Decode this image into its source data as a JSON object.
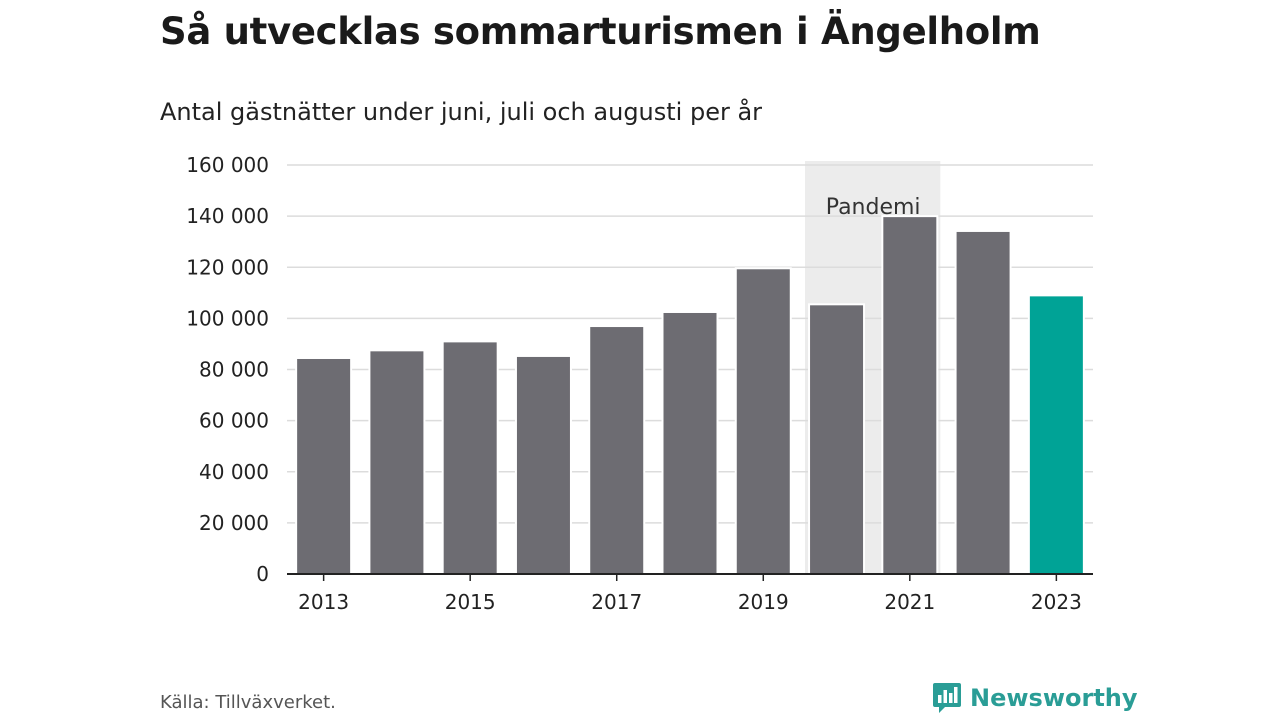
{
  "header": {
    "title": "Så utvecklas sommarturismen i Ängelholm",
    "subtitle": "Antal gästnätter under juni, juli och augusti per år"
  },
  "chart_data": {
    "type": "bar",
    "title": "Så utvecklas sommarturismen i Ängelholm",
    "subtitle": "Antal gästnätter under juni, juli och augusti per år",
    "xlabel": "",
    "ylabel": "",
    "categories": [
      "2013",
      "2014",
      "2015",
      "2016",
      "2017",
      "2018",
      "2019",
      "2020",
      "2021",
      "2022",
      "2023"
    ],
    "values": [
      84500,
      87500,
      91000,
      85300,
      97000,
      102500,
      119600,
      105500,
      140000,
      134200,
      109000
    ],
    "x_tick_labels": [
      "2013",
      "2015",
      "2017",
      "2019",
      "2021",
      "2023"
    ],
    "y_tick_values": [
      0,
      20000,
      40000,
      60000,
      80000,
      100000,
      120000,
      140000,
      160000
    ],
    "y_tick_labels": [
      "0",
      "20 000",
      "40 000",
      "60 000",
      "80 000",
      "100 000",
      "120 000",
      "140 000",
      "160 000"
    ],
    "ylim": [
      0,
      160000
    ],
    "grid": true,
    "legend": "none",
    "highlight_category": "2023",
    "annotation": {
      "label": "Pandemi",
      "range": [
        "2020",
        "2021"
      ]
    },
    "colors": {
      "bar": "#6d6c72",
      "highlight": "#00a396",
      "band": "#ececec",
      "grid": "#dcdcdc",
      "axis": "#222222"
    }
  },
  "footer": {
    "source": "Källa: Tillväxverket.",
    "brand": "Newsworthy",
    "brand_color": "#2a9d96",
    "brand_icon": "newsworthy-chart-bubble-icon"
  }
}
